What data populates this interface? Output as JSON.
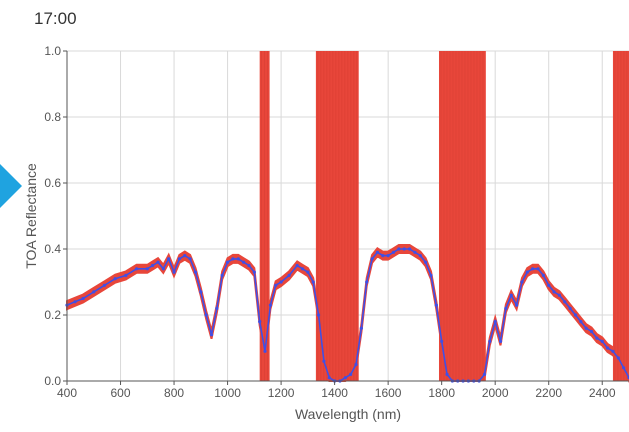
{
  "status": {
    "time": "17:00"
  },
  "colors": {
    "accent": "#1fa3e0",
    "uncertainty": "#e8463a",
    "line": "#3f4fe6",
    "marker": "#3f4fe6",
    "grid": "#d9d9d9"
  },
  "icons": {
    "nav": "chevron-right-icon"
  },
  "chart_data": {
    "type": "line",
    "xlabel": "Wavelength (nm)",
    "ylabel": "TOA Reflectance",
    "xlim": [
      400,
      2500
    ],
    "ylim": [
      0,
      1.0
    ],
    "xticks": [
      400,
      600,
      800,
      1000,
      1200,
      1400,
      1600,
      1800,
      2000,
      2200,
      2400
    ],
    "yticks": [
      0.0,
      0.2,
      0.4,
      0.6,
      0.8,
      1.0
    ],
    "xtick_labels": [
      "400",
      "600",
      "800",
      "1000",
      "1200",
      "1400",
      "1600",
      "1800",
      "2000",
      "2200",
      "2400"
    ],
    "ytick_labels": [
      "0.0",
      "0.2",
      "0.4",
      "0.6",
      "0.8",
      "1.0"
    ],
    "grid": true,
    "series": [
      {
        "type": "line_with_band",
        "x": [
          400,
          430,
          460,
          500,
          540,
          580,
          620,
          660,
          700,
          720,
          740,
          760,
          780,
          800,
          820,
          840,
          860,
          880,
          900,
          920,
          940,
          960,
          980,
          1000,
          1020,
          1040,
          1060,
          1080,
          1100,
          1120,
          1140,
          1160,
          1180,
          1200,
          1230,
          1260,
          1280,
          1300,
          1320,
          1340,
          1360,
          1380,
          1400,
          1420,
          1440,
          1460,
          1480,
          1500,
          1520,
          1540,
          1560,
          1580,
          1600,
          1620,
          1640,
          1660,
          1680,
          1700,
          1720,
          1740,
          1760,
          1780,
          1800,
          1820,
          1840,
          1860,
          1880,
          1900,
          1920,
          1940,
          1960,
          1980,
          2000,
          2020,
          2040,
          2060,
          2080,
          2100,
          2120,
          2140,
          2160,
          2180,
          2200,
          2220,
          2240,
          2260,
          2280,
          2300,
          2320,
          2340,
          2360,
          2380,
          2400,
          2420,
          2440,
          2460,
          2480,
          2500
        ],
        "y": [
          0.23,
          0.24,
          0.25,
          0.27,
          0.29,
          0.31,
          0.32,
          0.34,
          0.34,
          0.35,
          0.36,
          0.34,
          0.37,
          0.33,
          0.37,
          0.38,
          0.37,
          0.33,
          0.27,
          0.2,
          0.14,
          0.22,
          0.32,
          0.36,
          0.37,
          0.37,
          0.36,
          0.35,
          0.33,
          0.18,
          0.09,
          0.23,
          0.29,
          0.3,
          0.32,
          0.35,
          0.34,
          0.33,
          0.3,
          0.2,
          0.06,
          0.01,
          0.0,
          0.0,
          0.01,
          0.02,
          0.05,
          0.16,
          0.3,
          0.37,
          0.39,
          0.38,
          0.38,
          0.39,
          0.4,
          0.4,
          0.4,
          0.39,
          0.38,
          0.36,
          0.32,
          0.23,
          0.12,
          0.02,
          0.0,
          0.0,
          0.0,
          0.0,
          0.0,
          0.0,
          0.02,
          0.12,
          0.18,
          0.12,
          0.22,
          0.26,
          0.23,
          0.3,
          0.33,
          0.34,
          0.34,
          0.32,
          0.29,
          0.27,
          0.26,
          0.24,
          0.22,
          0.2,
          0.18,
          0.16,
          0.15,
          0.13,
          0.12,
          0.1,
          0.09,
          0.07,
          0.04,
          0.01
        ],
        "band_halfwidth": 0.012
      }
    ],
    "masked_bands": [
      {
        "x0": 1120,
        "x1": 1157
      },
      {
        "x0": 1330,
        "x1": 1490
      },
      {
        "x0": 1790,
        "x1": 1965
      },
      {
        "x0": 2440,
        "x1": 2500
      }
    ]
  }
}
